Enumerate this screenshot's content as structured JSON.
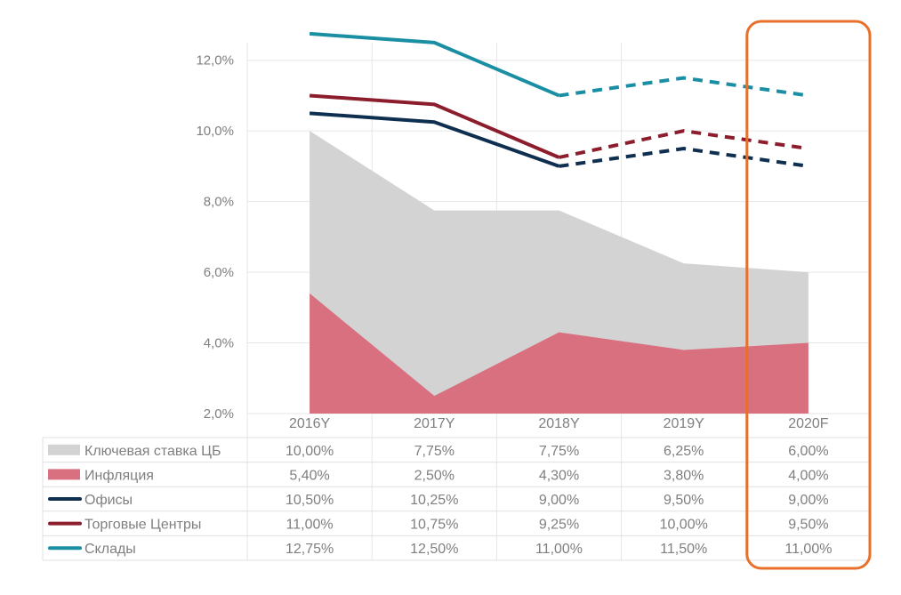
{
  "chart_data": {
    "type": "area",
    "categories": [
      "2016Y",
      "2017Y",
      "2018Y",
      "2019Y",
      "2020F"
    ],
    "ylim": [
      0.02,
      0.13
    ],
    "y_ticks": [
      "2,0%",
      "4,0%",
      "6,0%",
      "8,0%",
      "10,0%",
      "12,0%"
    ],
    "y_tick_values": [
      0.02,
      0.04,
      0.06,
      0.08,
      0.1,
      0.12
    ],
    "grid": true,
    "series": [
      {
        "name": "Ключевая ставка ЦБ",
        "kind": "area",
        "color": "#d3d3d3",
        "values": [
          0.1,
          0.0775,
          0.0775,
          0.0625,
          0.06
        ],
        "labels": [
          "10,00%",
          "7,75%",
          "7,75%",
          "6,25%",
          "6,00%"
        ]
      },
      {
        "name": "Инфляция",
        "kind": "area",
        "color": "#d9707f",
        "values": [
          0.054,
          0.025,
          0.043,
          0.038,
          0.04
        ],
        "labels": [
          "5,40%",
          "2,50%",
          "4,30%",
          "3,80%",
          "4,00%"
        ]
      },
      {
        "name": "Офисы",
        "kind": "line",
        "color": "#0e2f4f",
        "values": [
          0.105,
          0.1025,
          0.09,
          0.095,
          0.09
        ],
        "labels": [
          "10,50%",
          "10,25%",
          "9,00%",
          "9,50%",
          "9,00%"
        ]
      },
      {
        "name": "Торговые Центры",
        "kind": "line",
        "color": "#8c1d2c",
        "values": [
          0.11,
          0.1075,
          0.0925,
          0.1,
          0.095
        ],
        "labels": [
          "11,00%",
          "10,75%",
          "9,25%",
          "10,00%",
          "9,50%"
        ]
      },
      {
        "name": "Склады",
        "kind": "line",
        "color": "#1a8fa3",
        "values": [
          0.1275,
          0.125,
          0.11,
          0.115,
          0.11
        ],
        "labels": [
          "12,75%",
          "12,50%",
          "11,00%",
          "11,50%",
          "11,00%"
        ]
      }
    ],
    "forecast_dashed_from_index": 2,
    "highlight": {
      "category": "2020F",
      "color": "#e8702a"
    }
  }
}
